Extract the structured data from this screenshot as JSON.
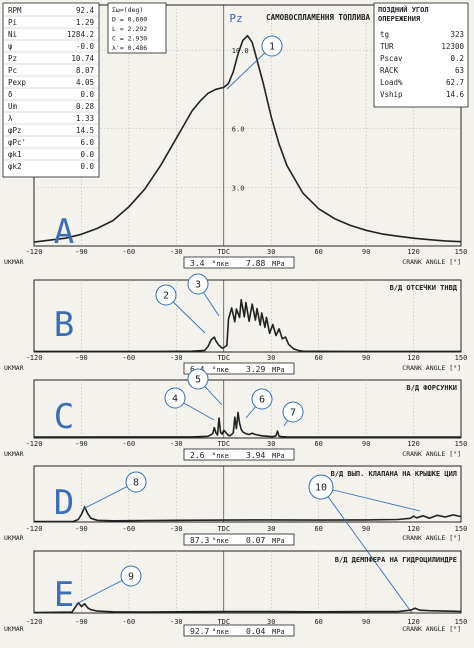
{
  "colors": {
    "paper": "#f4f2ec",
    "ink": "#222222",
    "grid": "#b9b6ae",
    "callout": "#3a6fb5",
    "panel_letter": "#3f6db3",
    "pz_label": "#3d62b0"
  },
  "pz_label": "Pz",
  "params_left": [
    {
      "k": "RPM",
      "v": "92.4"
    },
    {
      "k": "Pi",
      "v": "1.29"
    },
    {
      "k": "Ni",
      "v": "1284.2"
    },
    {
      "k": "ψ",
      "v": "-0.0"
    },
    {
      "k": "Pz",
      "v": "10.74"
    },
    {
      "k": "Pc",
      "v": "8.07"
    },
    {
      "k": "Pexp",
      "v": "4.05"
    },
    {
      "k": "δ",
      "v": "0.0"
    },
    {
      "k": "Um",
      "v": "0.28"
    },
    {
      "k": "λ",
      "v": "1.33"
    },
    {
      "k": "φPz",
      "v": "14.5"
    },
    {
      "k": "φPc'",
      "v": "6.0"
    },
    {
      "k": "φk1",
      "v": "0.0"
    },
    {
      "k": "φk2",
      "v": "0.0"
    }
  ],
  "params_mid": [
    "Σω=(deg)",
    "D = 0.600",
    "L = 2.292",
    "C = 2.930",
    "λ'= 0.486"
  ],
  "top_title": "САМОВОСПЛАМЕННЯ ТОПЛИВА",
  "params_right": {
    "title_line1": "ПОЗДНИЙ УГОЛ",
    "title_line2": "ОПЕРЕЖЕНИЯ",
    "rows": [
      {
        "k": "tg",
        "v": "323"
      },
      {
        "k": "TUR",
        "v": "12300"
      },
      {
        "k": "Pscav",
        "v": "0.2"
      },
      {
        "k": "RACK",
        "v": "63"
      },
      {
        "k": "Load%",
        "v": "62.7"
      },
      {
        "k": "Vship",
        "v": "14.6"
      }
    ]
  },
  "chart_data": [
    {
      "type": "line",
      "panel": "A",
      "title": "САМОВОСПЛАМЕННЯ ТОПЛИВА",
      "xlabel": "CRANK ANGLE [°]",
      "left_tag": "UKMAR",
      "x_ticks": [
        "-120",
        "-90",
        "-60",
        "-30",
        "TDC",
        "30",
        "60",
        "90",
        "120",
        "150"
      ],
      "xlim": [
        -120,
        150
      ],
      "y_ticks": [
        "10.0",
        "6.0",
        "3.0"
      ],
      "y_tick_values": [
        10,
        6,
        3
      ],
      "ylim": [
        0,
        12
      ],
      "readout": {
        "v1": "3.4",
        "u1": "°пке",
        "v2": "7.88",
        "u2": "MPa"
      },
      "callouts": [
        {
          "label": "1",
          "at_x": 0
        }
      ],
      "series": [
        {
          "x": [
            -120,
            -100,
            -90,
            -80,
            -70,
            -60,
            -50,
            -40,
            -30,
            -20,
            -15,
            -10,
            -5,
            0,
            3,
            6,
            9,
            12,
            15,
            18,
            21,
            25,
            30,
            35,
            40,
            50,
            60,
            70,
            80,
            90,
            100,
            110,
            120,
            130,
            140,
            150
          ],
          "y": [
            0.2,
            0.4,
            0.6,
            0.9,
            1.3,
            2.0,
            2.9,
            4.1,
            5.5,
            6.9,
            7.4,
            7.8,
            8.0,
            8.1,
            8.3,
            8.9,
            9.8,
            10.5,
            10.74,
            10.4,
            9.5,
            8.3,
            6.6,
            5.2,
            4.1,
            2.7,
            1.9,
            1.4,
            1.05,
            0.8,
            0.62,
            0.5,
            0.4,
            0.32,
            0.26,
            0.22
          ]
        }
      ]
    },
    {
      "type": "line",
      "panel": "B",
      "title": "В/Д ОТСЕЧКИ ТНВД",
      "xlabel": "CRANK ANGLE [°]",
      "left_tag": "UKMAR",
      "x_ticks": [
        "-120",
        "-90",
        "-60",
        "-30",
        "TDC",
        "30",
        "60",
        "90",
        "120",
        "150"
      ],
      "xlim": [
        -120,
        150
      ],
      "ylim": [
        0,
        12
      ],
      "readout": {
        "v1": "6.4",
        "u1": "°пке",
        "v2": "3.29",
        "u2": "MPa"
      },
      "callouts": [
        {
          "label": "2",
          "at_x": -6
        },
        {
          "label": "3",
          "at_x": 4
        }
      ],
      "series": [
        {
          "x": [
            -120,
            -40,
            -20,
            -12,
            -10,
            -8,
            -6,
            -5,
            -3,
            -1,
            0,
            2,
            3,
            5,
            7,
            8,
            10,
            11,
            13,
            14,
            16,
            18,
            20,
            21,
            23,
            24,
            26,
            27,
            29,
            31,
            33,
            35,
            37,
            39,
            41,
            44,
            47,
            50,
            60,
            80,
            150
          ],
          "y": [
            0.1,
            0.1,
            0.15,
            0.3,
            1.0,
            2.2,
            2.7,
            2.0,
            1.2,
            0.7,
            0.8,
            1.2,
            6.0,
            8.0,
            5.5,
            7.8,
            6.3,
            9.5,
            6.4,
            9.0,
            5.6,
            8.7,
            5.8,
            7.9,
            4.9,
            7.1,
            4.5,
            6.3,
            3.4,
            5.0,
            3.0,
            4.2,
            2.4,
            2.7,
            1.4,
            0.6,
            0.3,
            0.15,
            0.12,
            0.1,
            0.1
          ]
        }
      ]
    },
    {
      "type": "line",
      "panel": "C",
      "title": "В/Д ФОРСУНКИ",
      "xlabel": "CRANK ANGLE [°]",
      "left_tag": "UKMAR",
      "x_ticks": [
        "-120",
        "-90",
        "-60",
        "-30",
        "TDC",
        "30",
        "60",
        "90",
        "120",
        "150"
      ],
      "xlim": [
        -120,
        150
      ],
      "ylim": [
        0,
        12
      ],
      "readout": {
        "v1": "2.6",
        "u1": "°пке",
        "v2": "3.94",
        "u2": "MPa"
      },
      "callouts": [
        {
          "label": "4",
          "at_x": -5
        },
        {
          "label": "5",
          "at_x": 0
        },
        {
          "label": "6",
          "at_x": 9
        },
        {
          "label": "7",
          "at_x": 34
        }
      ],
      "series": [
        {
          "x": [
            -120,
            -20,
            -10,
            -7,
            -6,
            -5,
            -4,
            -3,
            -2,
            -1,
            0,
            1,
            2,
            3,
            4,
            6,
            7,
            8,
            9,
            10,
            11,
            12,
            14,
            16,
            18,
            20,
            24,
            28,
            31,
            33,
            34,
            35,
            37,
            40,
            50,
            150
          ],
          "y": [
            0.2,
            0.25,
            0.4,
            1.0,
            2.4,
            1.2,
            0.7,
            4.6,
            1.3,
            0.9,
            1.8,
            1.4,
            1.0,
            0.6,
            0.5,
            1.2,
            4.8,
            2.2,
            5.9,
            3.4,
            2.0,
            1.4,
            1.0,
            0.8,
            1.1,
            0.8,
            0.5,
            0.4,
            0.3,
            0.5,
            1.6,
            0.4,
            0.3,
            0.25,
            0.2,
            0.2
          ]
        }
      ]
    },
    {
      "type": "line",
      "panel": "D",
      "title": "В/Д ВЫП. КЛАПАНА НА КРЫШКЕ ЦИЛ",
      "xlabel": "CRANK ANGLE [°]",
      "left_tag": "UKMAR",
      "x_ticks": [
        "-120",
        "-90",
        "-60",
        "-30",
        "TDC",
        "30",
        "60",
        "90",
        "120",
        "150"
      ],
      "xlim": [
        -120,
        150
      ],
      "ylim": [
        0,
        12
      ],
      "readout": {
        "v1": "87.3",
        "u1": "°пке",
        "v2": "0.07",
        "u2": "MPa"
      },
      "callouts": [
        {
          "label": "8",
          "at_x": -88
        },
        {
          "label": "10",
          "at_x": 120
        }
      ],
      "series": [
        {
          "x": [
            -120,
            -95,
            -92,
            -90,
            -88,
            -86,
            -84,
            -80,
            -70,
            -50,
            -30,
            0,
            30,
            60,
            90,
            110,
            118,
            120,
            122,
            126,
            130,
            135,
            140,
            145,
            150
          ],
          "y": [
            0.1,
            0.15,
            0.6,
            1.8,
            3.6,
            2.0,
            0.9,
            0.4,
            0.3,
            0.35,
            0.4,
            0.45,
            0.5,
            0.45,
            0.5,
            0.6,
            0.9,
            1.4,
            1.0,
            1.5,
            0.9,
            1.6,
            1.2,
            1.7,
            1.3
          ]
        }
      ]
    },
    {
      "type": "line",
      "panel": "E",
      "title": "В/Д ДЕМПФЕРА НА ГИДРОЦИЛИНДРЕ",
      "xlabel": "CRANK ANGLE [°]",
      "left_tag": "UKMAR",
      "x_ticks": [
        "-120",
        "-90",
        "-60",
        "-30",
        "TDC",
        "30",
        "60",
        "90",
        "120",
        "150"
      ],
      "xlim": [
        -120,
        150
      ],
      "ylim": [
        0,
        12
      ],
      "readout": {
        "v1": "92.7",
        "u1": "°пке",
        "v2": "0.04",
        "u2": "MPa"
      },
      "callouts": [
        {
          "label": "9",
          "at_x": -89
        }
      ],
      "series": [
        {
          "x": [
            -120,
            -96,
            -94,
            -92,
            -90,
            -88,
            -86,
            -84,
            -80,
            -70,
            -50,
            -30,
            0,
            30,
            60,
            90,
            110,
            118,
            121,
            124,
            130,
            140,
            150
          ],
          "y": [
            0.1,
            0.2,
            1.2,
            2.2,
            1.4,
            2.0,
            1.1,
            0.7,
            0.4,
            0.25,
            0.2,
            0.25,
            0.3,
            0.3,
            0.25,
            0.3,
            0.3,
            0.6,
            1.0,
            0.6,
            0.5,
            0.4,
            0.35
          ]
        }
      ]
    }
  ]
}
